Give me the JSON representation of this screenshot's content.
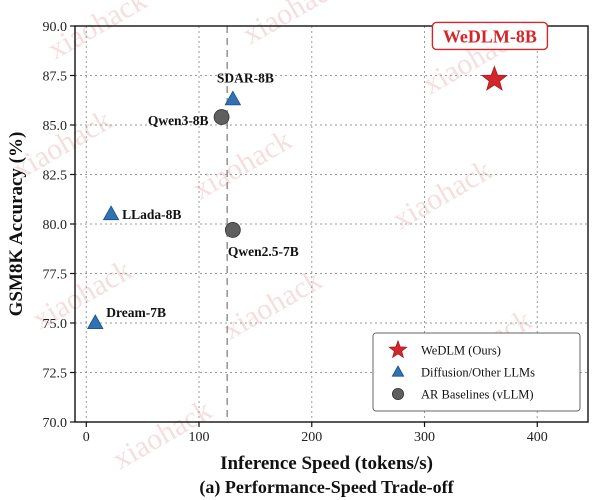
{
  "chart_data": {
    "type": "scatter",
    "xlabel": "Inference Speed (tokens/s)",
    "ylabel": "GSM8K Accuracy (%)",
    "caption": "(a) Performance-Speed Trade-off",
    "xlim": [
      -10,
      445
    ],
    "ylim": [
      70,
      90
    ],
    "xticks": [
      0,
      100,
      200,
      300,
      400
    ],
    "yticks": [
      70.0,
      72.5,
      75.0,
      77.5,
      80.0,
      82.5,
      85.0,
      87.5,
      90.0
    ],
    "grid": true,
    "reference_line_x": 125,
    "legend_position": "bottom-right",
    "series": [
      {
        "name": "WeDLM (Ours)",
        "marker": "star",
        "color": "#d3262b",
        "points": [
          {
            "label": "WeDLM-8B",
            "x": 362,
            "y": 87.3
          }
        ]
      },
      {
        "name": "Diffusion/Other LLMs",
        "marker": "triangle",
        "color": "#2f73b5",
        "points": [
          {
            "label": "SDAR-8B",
            "x": 130,
            "y": 86.3
          },
          {
            "label": "LLada-8B",
            "x": 22,
            "y": 80.5
          },
          {
            "label": "Dream-7B",
            "x": 8,
            "y": 75.0
          }
        ]
      },
      {
        "name": "AR Baselines (vLLM)",
        "marker": "circle",
        "color": "#5f5f5f",
        "points": [
          {
            "label": "Qwen3-8B",
            "x": 120,
            "y": 85.4
          },
          {
            "label": "Qwen2.5-7B",
            "x": 130,
            "y": 79.7
          }
        ]
      }
    ]
  },
  "watermark_text": "xiaohack"
}
